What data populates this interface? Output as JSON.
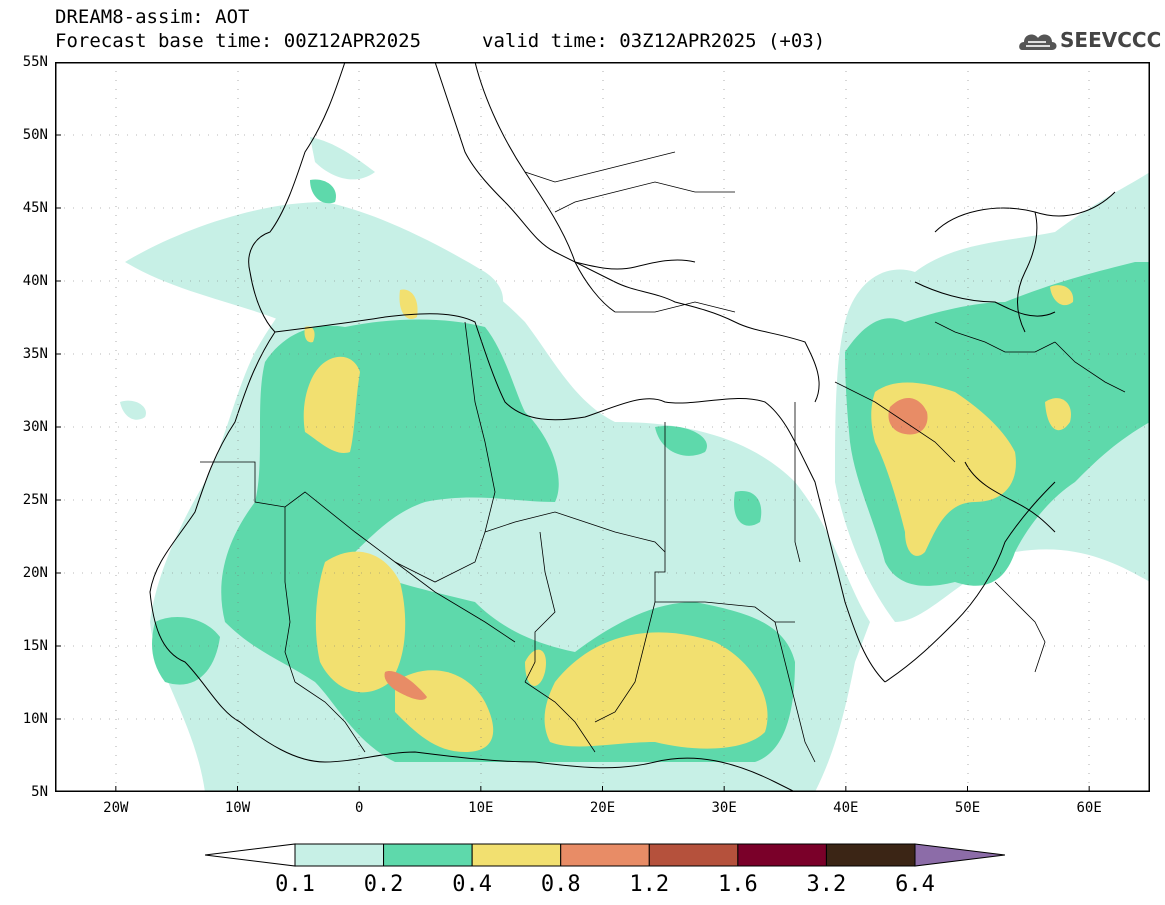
{
  "header": {
    "title": "DREAM8-assim: AOT",
    "base_time": "Forecast base time: 00Z12APR2025",
    "valid_time": "valid time: 03Z12APR2025 (+03)"
  },
  "logo": {
    "text": "SEEVCCC",
    "icon": "cloud-icon"
  },
  "map": {
    "lon_range": [
      -25,
      65
    ],
    "lat_range": [
      5,
      55
    ],
    "lat_labels": [
      "55N",
      "50N",
      "45N",
      "40N",
      "35N",
      "30N",
      "25N",
      "20N",
      "15N",
      "10N",
      "5N"
    ],
    "lat_values": [
      55,
      50,
      45,
      40,
      35,
      30,
      25,
      20,
      15,
      10,
      5
    ],
    "lon_labels": [
      "20W",
      "10W",
      "0",
      "10E",
      "20E",
      "30E",
      "40E",
      "50E",
      "60E"
    ],
    "lon_values": [
      -20,
      -10,
      0,
      10,
      20,
      30,
      40,
      50,
      60
    ],
    "grid": true
  },
  "colorbar": {
    "levels": [
      "0.1",
      "0.2",
      "0.4",
      "0.8",
      "1.2",
      "1.6",
      "3.2",
      "6.4"
    ],
    "colors": [
      "#c7f0e6",
      "#5ed9ab",
      "#f2e070",
      "#e88c66",
      "#b5513c",
      "#7a0029",
      "#3b2515"
    ],
    "below_color": "#ffffff",
    "above_color": "#8c6ca8"
  }
}
